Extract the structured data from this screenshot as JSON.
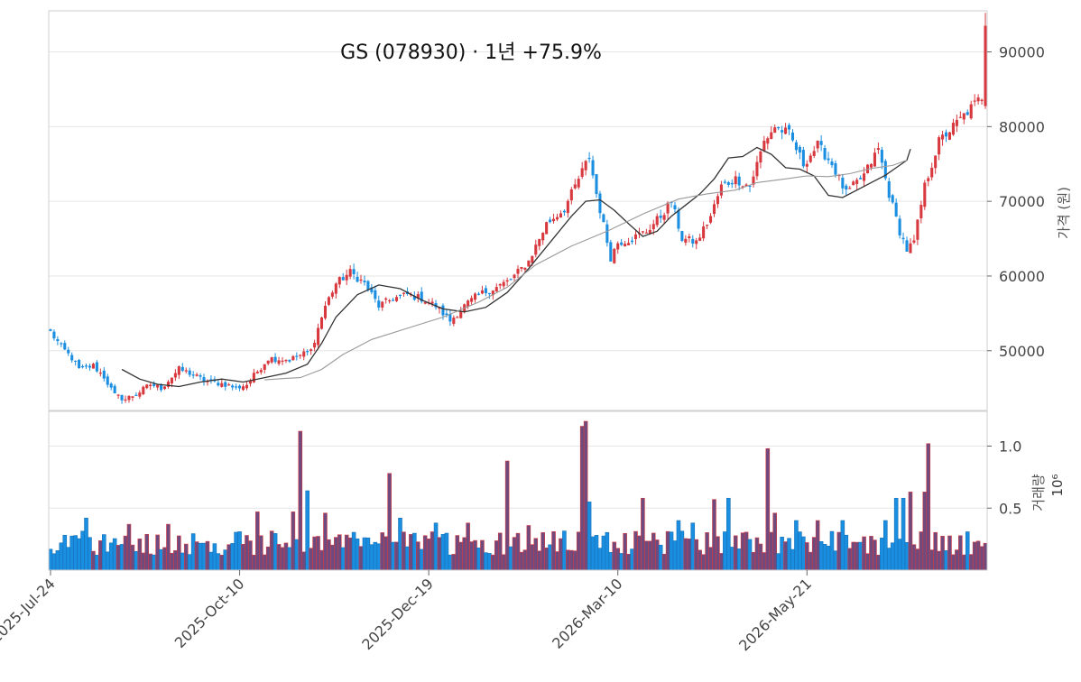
{
  "chart_data": {
    "type": "candlestick",
    "title": "GS (078930)  ·  1년 +75.9%",
    "price_panel": {
      "ylabel": "가격 (원)",
      "ylim": [
        42000,
        95500
      ],
      "yticks": [
        50000,
        60000,
        70000,
        80000,
        90000
      ],
      "grid": true
    },
    "volume_panel": {
      "ylabel": "거래량",
      "scale_label": "10⁶",
      "ylim": [
        0,
        1.28
      ],
      "yticks": [
        0.5,
        1.0
      ],
      "ytick_labels": [
        "0.5",
        "1.0"
      ],
      "grid": true
    },
    "xtick_labels": [
      "2025-Jul-24",
      "2025-Oct-10",
      "2025-Dec-19",
      "2026-Mar-10",
      "2026-May-21"
    ],
    "xtick_indices": [
      0,
      53,
      106,
      159,
      212
    ],
    "colors": {
      "up": "#d8393f",
      "down": "#1a8ee0",
      "up_volume": "#6e4a7e",
      "down_volume": "#1a8ee0",
      "ma_short": "#333333",
      "ma_long": "#999999"
    },
    "series": [
      {
        "name": "",
        "kind": "close_anchors",
        "points": [
          [
            0,
            52500
          ],
          [
            3,
            50500
          ],
          [
            6,
            49000
          ],
          [
            8,
            47500
          ],
          [
            12,
            48000
          ],
          [
            15,
            46500
          ],
          [
            18,
            44000
          ],
          [
            21,
            43500
          ],
          [
            25,
            44500
          ],
          [
            28,
            45500
          ],
          [
            31,
            45000
          ],
          [
            36,
            47500
          ],
          [
            39,
            47000
          ],
          [
            43,
            46000
          ],
          [
            49,
            45500
          ],
          [
            52,
            45000
          ],
          [
            55,
            45500
          ],
          [
            61,
            49000
          ],
          [
            67,
            48800
          ],
          [
            73,
            50000
          ],
          [
            77,
            56000
          ],
          [
            80,
            59000
          ],
          [
            84,
            60500
          ],
          [
            88,
            59000
          ],
          [
            92,
            56000
          ],
          [
            96,
            57000
          ],
          [
            100,
            57500
          ],
          [
            104,
            57000
          ],
          [
            108,
            56000
          ],
          [
            112,
            54000
          ],
          [
            116,
            56000
          ],
          [
            120,
            57500
          ],
          [
            125,
            58500
          ],
          [
            129,
            59500
          ],
          [
            134,
            62000
          ],
          [
            139,
            67000
          ],
          [
            144,
            69000
          ],
          [
            149,
            74000
          ],
          [
            151,
            76000
          ],
          [
            153,
            71000
          ],
          [
            157,
            62500
          ],
          [
            159,
            64500
          ],
          [
            163,
            65000
          ],
          [
            167,
            66000
          ],
          [
            171,
            68000
          ],
          [
            174,
            70000
          ],
          [
            177,
            65000
          ],
          [
            181,
            64500
          ],
          [
            185,
            68000
          ],
          [
            188,
            72000
          ],
          [
            192,
            73000
          ],
          [
            196,
            72000
          ],
          [
            200,
            78000
          ],
          [
            203,
            80000
          ],
          [
            207,
            79000
          ],
          [
            211,
            75000
          ],
          [
            215,
            77500
          ],
          [
            219,
            75000
          ],
          [
            223,
            71000
          ],
          [
            228,
            73500
          ],
          [
            232,
            77000
          ],
          [
            235,
            71000
          ],
          [
            238,
            66000
          ],
          [
            240,
            63500
          ],
          [
            242,
            64500
          ],
          [
            245,
            72000
          ],
          [
            249,
            78000
          ],
          [
            253,
            80000
          ],
          [
            257,
            82000
          ],
          [
            259,
            83000
          ],
          [
            261,
            84000
          ],
          [
            262,
            93500
          ]
        ]
      },
      {
        "name": "",
        "kind": "ma_short",
        "points": [
          [
            20,
            47500
          ],
          [
            25,
            46200
          ],
          [
            30,
            45500
          ],
          [
            36,
            45200
          ],
          [
            42,
            45800
          ],
          [
            48,
            46200
          ],
          [
            54,
            45800
          ],
          [
            60,
            46400
          ],
          [
            66,
            47000
          ],
          [
            72,
            48200
          ],
          [
            76,
            51000
          ],
          [
            80,
            54500
          ],
          [
            86,
            57500
          ],
          [
            92,
            58800
          ],
          [
            98,
            58300
          ],
          [
            104,
            56800
          ],
          [
            110,
            55600
          ],
          [
            116,
            55200
          ],
          [
            122,
            55800
          ],
          [
            128,
            57800
          ],
          [
            134,
            61000
          ],
          [
            140,
            64500
          ],
          [
            146,
            68000
          ],
          [
            150,
            70000
          ],
          [
            154,
            70200
          ],
          [
            158,
            68800
          ],
          [
            162,
            67000
          ],
          [
            166,
            65300
          ],
          [
            170,
            66000
          ],
          [
            174,
            68000
          ],
          [
            178,
            69500
          ],
          [
            182,
            71000
          ],
          [
            186,
            73000
          ],
          [
            190,
            75800
          ],
          [
            194,
            76000
          ],
          [
            198,
            77200
          ],
          [
            202,
            76300
          ],
          [
            206,
            74500
          ],
          [
            210,
            74300
          ],
          [
            214,
            73400
          ],
          [
            218,
            70800
          ],
          [
            222,
            70500
          ],
          [
            226,
            71500
          ],
          [
            230,
            72500
          ],
          [
            234,
            73500
          ],
          [
            237,
            74500
          ],
          [
            240,
            75500
          ],
          [
            241,
            77000
          ]
        ]
      },
      {
        "name": "",
        "kind": "ma_long",
        "points": [
          [
            60,
            46100
          ],
          [
            66,
            46300
          ],
          [
            70,
            46400
          ],
          [
            76,
            47500
          ],
          [
            82,
            49500
          ],
          [
            90,
            51500
          ],
          [
            100,
            53000
          ],
          [
            110,
            54500
          ],
          [
            120,
            56500
          ],
          [
            128,
            58500
          ],
          [
            136,
            61500
          ],
          [
            146,
            64000
          ],
          [
            156,
            66000
          ],
          [
            166,
            68300
          ],
          [
            176,
            70300
          ],
          [
            184,
            71000
          ],
          [
            192,
            71500
          ],
          [
            198,
            72500
          ],
          [
            206,
            73000
          ],
          [
            212,
            73400
          ],
          [
            218,
            73300
          ],
          [
            224,
            73700
          ],
          [
            230,
            74400
          ],
          [
            236,
            74800
          ],
          [
            240,
            75500
          ]
        ]
      }
    ],
    "volume_spikes": [
      [
        10,
        0.42
      ],
      [
        22,
        0.37
      ],
      [
        33,
        0.37
      ],
      [
        53,
        0.31
      ],
      [
        58,
        0.47
      ],
      [
        68,
        0.47
      ],
      [
        70,
        1.12
      ],
      [
        72,
        0.64
      ],
      [
        77,
        0.46
      ],
      [
        84,
        0.26
      ],
      [
        95,
        0.78
      ],
      [
        98,
        0.42
      ],
      [
        108,
        0.38
      ],
      [
        117,
        0.38
      ],
      [
        128,
        0.88
      ],
      [
        134,
        0.36
      ],
      [
        149,
        1.16
      ],
      [
        150,
        1.2
      ],
      [
        151,
        0.55
      ],
      [
        166,
        0.58
      ],
      [
        176,
        0.4
      ],
      [
        180,
        0.38
      ],
      [
        186,
        0.57
      ],
      [
        190,
        0.58
      ],
      [
        201,
        0.98
      ],
      [
        203,
        0.46
      ],
      [
        209,
        0.4
      ],
      [
        215,
        0.4
      ],
      [
        222,
        0.4
      ],
      [
        234,
        0.4
      ],
      [
        237,
        0.58
      ],
      [
        239,
        0.58
      ],
      [
        241,
        0.63
      ],
      [
        245,
        0.63
      ],
      [
        246,
        1.02
      ]
    ]
  }
}
